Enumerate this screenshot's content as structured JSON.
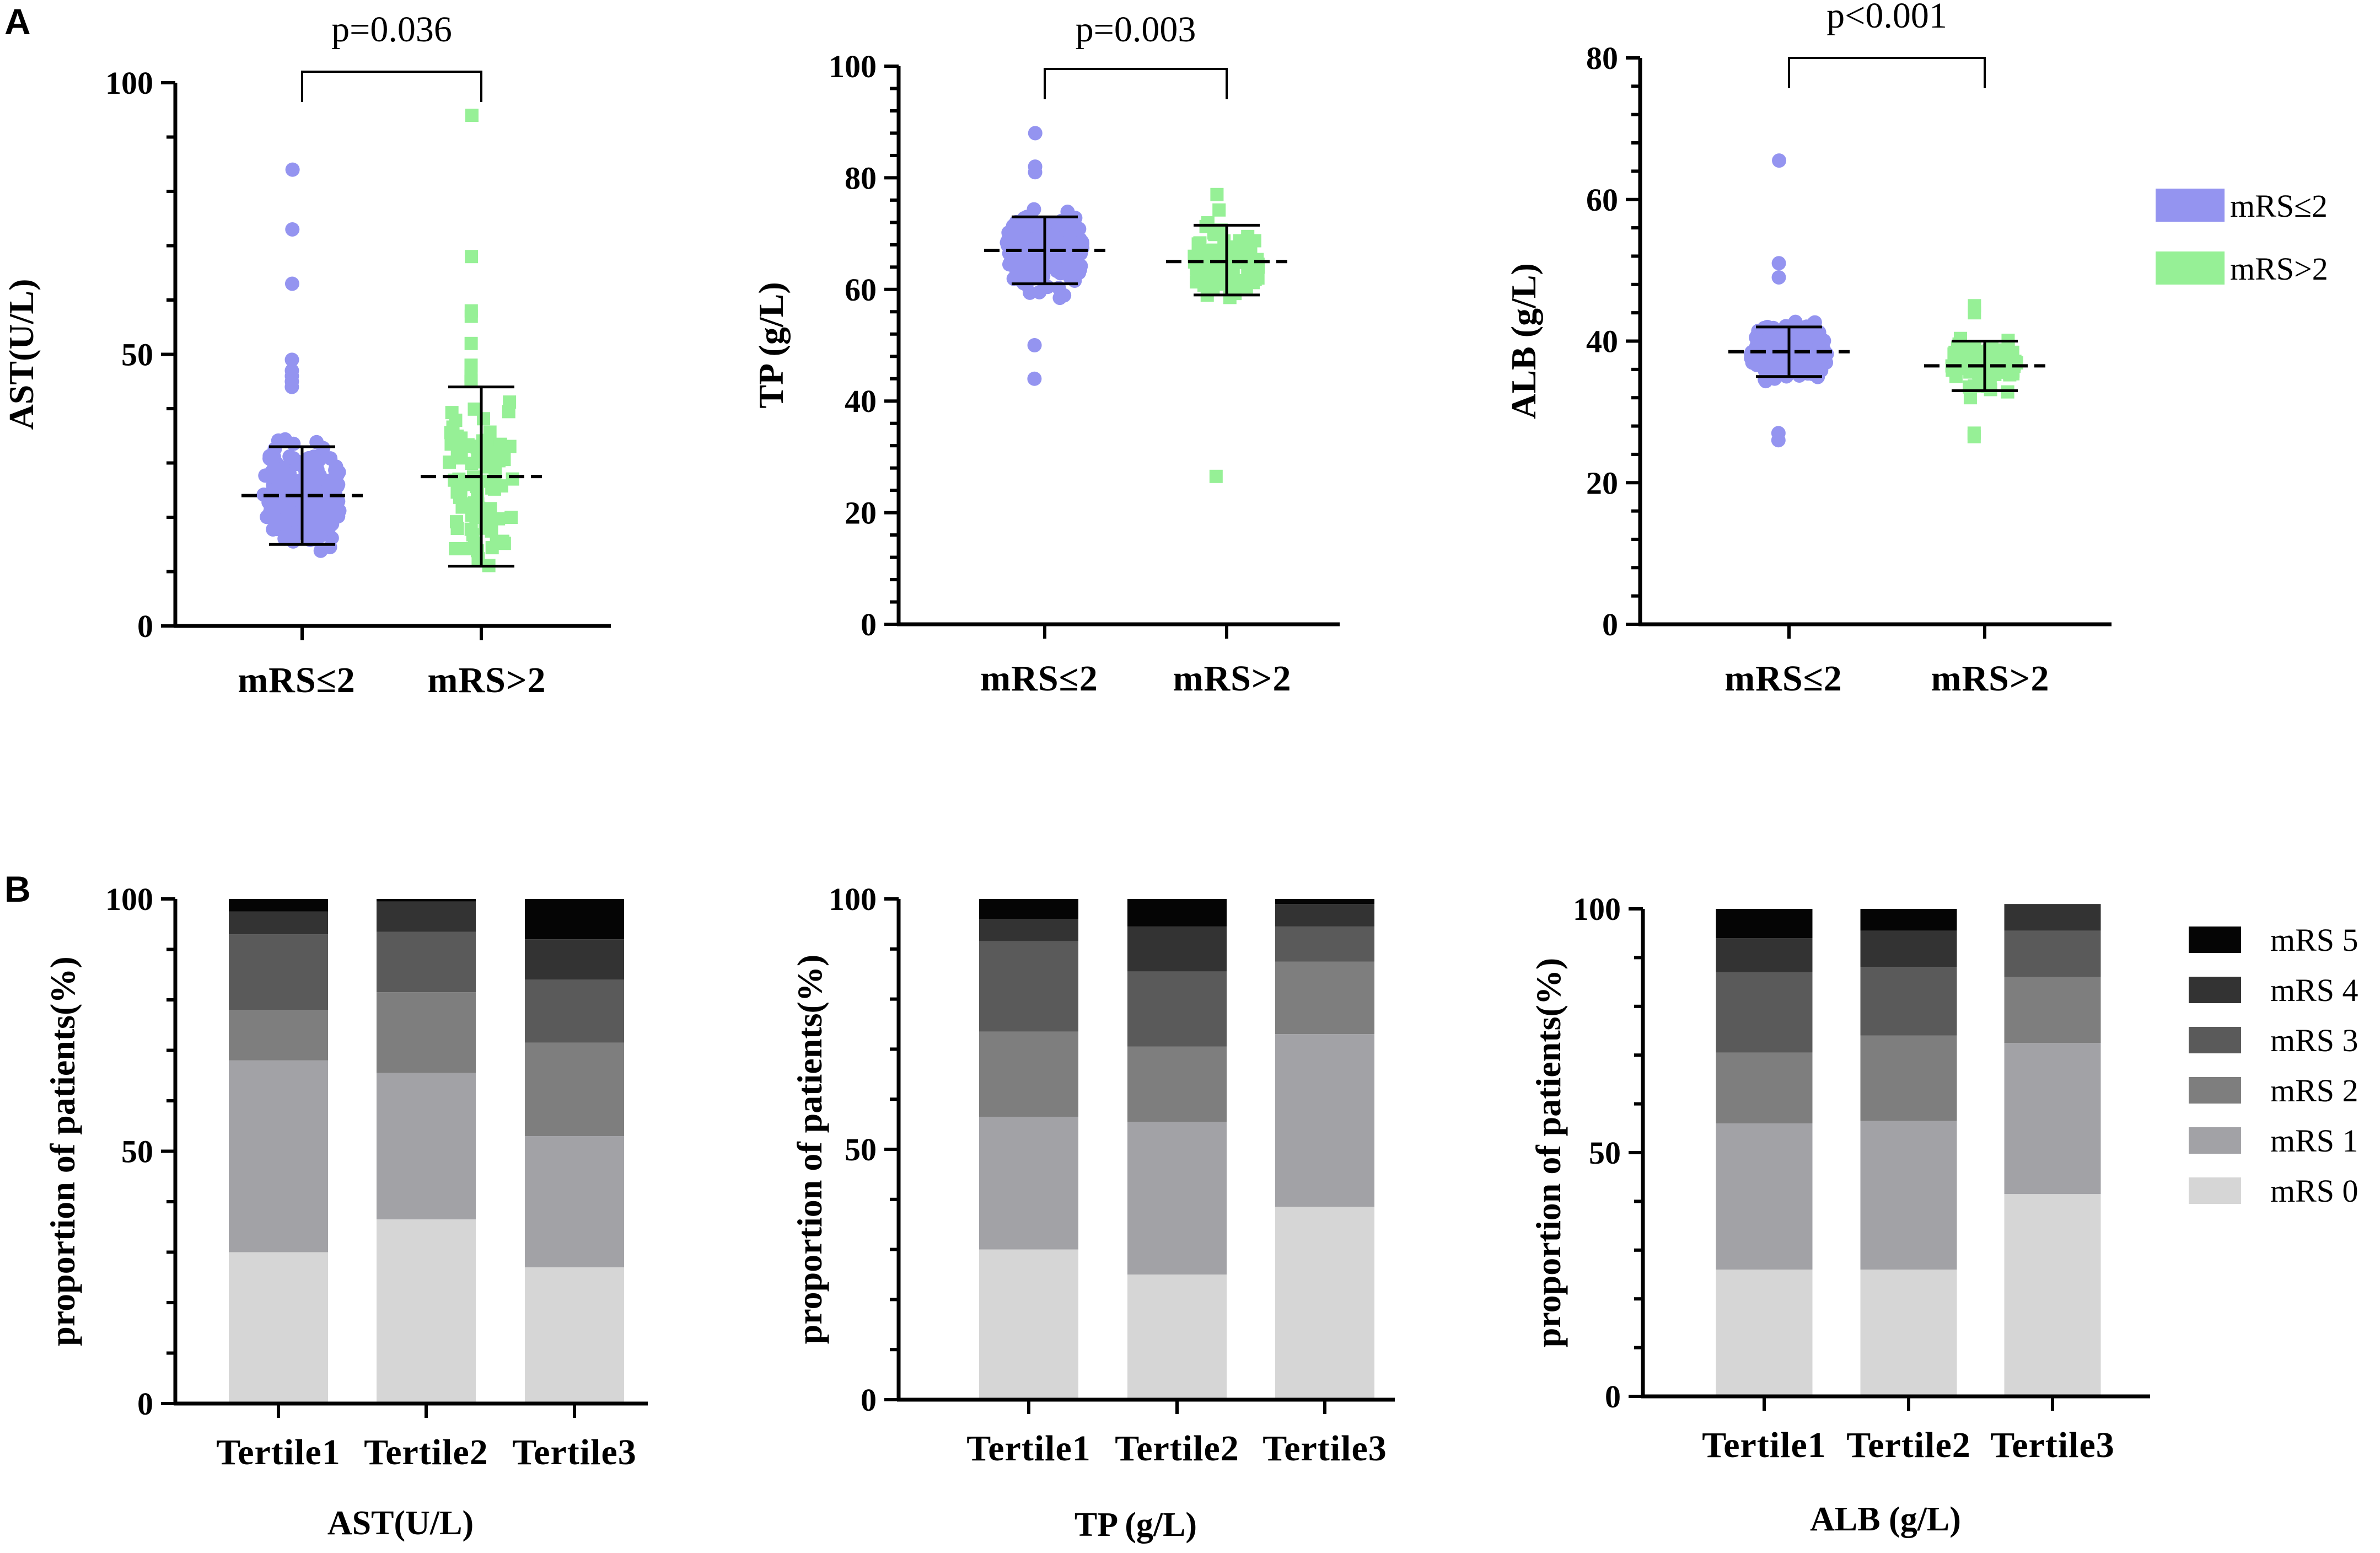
{
  "panel_labels": [
    "A",
    "B"
  ],
  "legend_top": {
    "items": [
      {
        "label": "mRS≤2",
        "color": "#9494f0"
      },
      {
        "label": "mRS>2",
        "color": "#96f096"
      }
    ]
  },
  "legend_bottom": {
    "items": [
      {
        "label": "mRS 5",
        "color": "#050505"
      },
      {
        "label": "mRS 4",
        "color": "#333333"
      },
      {
        "label": "mRS 3",
        "color": "#5a5a5a"
      },
      {
        "label": "mRS 2",
        "color": "#7e7e7e"
      },
      {
        "label": "mRS 1",
        "color": "#a2a2a6"
      },
      {
        "label": "mRS 0",
        "color": "#d6d6d6"
      }
    ]
  },
  "chart_data": [
    {
      "type": "scatter",
      "title": "",
      "ylabel": "AST(U/L)",
      "xlabel": "",
      "categories": [
        "mRS≤2",
        "mRS>2"
      ],
      "ylim": [
        0,
        100
      ],
      "yticks": [
        0,
        50,
        100
      ],
      "pvalue": "p=0.036",
      "series": [
        {
          "name": "mRS≤2",
          "mean": 24,
          "sd_upper": 33,
          "sd_lower": 15,
          "min": 11,
          "max": 84,
          "outliers": [
            84,
            73,
            63,
            49,
            47,
            46,
            45,
            44
          ]
        },
        {
          "name": "mRS>2",
          "mean": 27.5,
          "sd_upper": 44,
          "sd_lower": 11,
          "min": 10,
          "max": 94,
          "outliers": [
            94,
            68,
            58,
            57,
            52,
            48,
            46,
            45
          ]
        }
      ]
    },
    {
      "type": "scatter",
      "title": "",
      "ylabel": "TP (g/L)",
      "xlabel": "",
      "categories": [
        "mRS≤2",
        "mRS>2"
      ],
      "ylim": [
        0,
        100
      ],
      "yticks": [
        0,
        20,
        40,
        60,
        80,
        100
      ],
      "pvalue": "p=0.003",
      "series": [
        {
          "name": "mRS≤2",
          "mean": 67,
          "sd_upper": 73,
          "sd_lower": 61,
          "min": 44,
          "max": 88,
          "outliers": [
            88,
            82,
            81,
            44,
            50
          ]
        },
        {
          "name": "mRS>2",
          "mean": 65,
          "sd_upper": 71.5,
          "sd_lower": 59,
          "min": 26.5,
          "max": 77,
          "outliers": [
            77,
            26.5
          ]
        }
      ]
    },
    {
      "type": "scatter",
      "title": "",
      "ylabel": "ALB (g/L)",
      "xlabel": "",
      "categories": [
        "mRS≤2",
        "mRS>2"
      ],
      "ylim": [
        0,
        80
      ],
      "yticks": [
        0,
        20,
        40,
        60,
        80
      ],
      "pvalue": "p<0.001",
      "series": [
        {
          "name": "mRS≤2",
          "mean": 38.5,
          "sd_upper": 42,
          "sd_lower": 35,
          "min": 26,
          "max": 65.5,
          "outliers": [
            65.5,
            51,
            49,
            27,
            26
          ]
        },
        {
          "name": "mRS>2",
          "mean": 36.5,
          "sd_upper": 40,
          "sd_lower": 33,
          "min": 26.5,
          "max": 45,
          "outliers": [
            45,
            44,
            27,
            26.5
          ]
        }
      ]
    },
    {
      "type": "bar",
      "stacked": true,
      "title": "",
      "xlabel": "AST(U/L)",
      "ylabel": "proportion of patients(%)",
      "categories": [
        "Tertile1",
        "Tertile2",
        "Tertile3"
      ],
      "ylim": [
        0,
        100
      ],
      "yticks": [
        0,
        50,
        100
      ],
      "series": [
        {
          "name": "mRS 0",
          "values": [
            30,
            36.5,
            27
          ]
        },
        {
          "name": "mRS 1",
          "values": [
            38,
            29,
            26
          ]
        },
        {
          "name": "mRS 2",
          "values": [
            10,
            16,
            18.5
          ]
        },
        {
          "name": "mRS 3",
          "values": [
            15,
            12,
            12.5
          ]
        },
        {
          "name": "mRS 4",
          "values": [
            4.5,
            6,
            8
          ]
        },
        {
          "name": "mRS 5",
          "values": [
            2.5,
            0.5,
            8
          ]
        }
      ]
    },
    {
      "type": "bar",
      "stacked": true,
      "title": "",
      "xlabel": "TP (g/L)",
      "ylabel": "proportion of patients(%)",
      "categories": [
        "Tertile1",
        "Tertile2",
        "Tertile3"
      ],
      "ylim": [
        0,
        100
      ],
      "yticks": [
        0,
        50,
        100
      ],
      "series": [
        {
          "name": "mRS 0",
          "values": [
            30,
            25,
            38.5
          ]
        },
        {
          "name": "mRS 1",
          "values": [
            26.5,
            30.5,
            34.5
          ]
        },
        {
          "name": "mRS 2",
          "values": [
            17,
            15,
            14.5
          ]
        },
        {
          "name": "mRS 3",
          "values": [
            18,
            15,
            7
          ]
        },
        {
          "name": "mRS 4",
          "values": [
            4.5,
            9,
            4.5
          ]
        },
        {
          "name": "mRS 5",
          "values": [
            4,
            5.5,
            1
          ]
        }
      ]
    },
    {
      "type": "bar",
      "stacked": true,
      "title": "",
      "xlabel": "ALB (g/L)",
      "ylabel": "proportion of patients(%)",
      "categories": [
        "Tertile1",
        "Tertile2",
        "Tertile3"
      ],
      "ylim": [
        0,
        100
      ],
      "yticks": [
        0,
        50,
        100
      ],
      "series": [
        {
          "name": "mRS 0",
          "values": [
            26,
            26,
            41.5
          ]
        },
        {
          "name": "mRS 1",
          "values": [
            30,
            30.5,
            31
          ]
        },
        {
          "name": "mRS 2",
          "values": [
            14.5,
            17.5,
            13.5
          ]
        },
        {
          "name": "mRS 3",
          "values": [
            16.5,
            14,
            9.5
          ]
        },
        {
          "name": "mRS 4",
          "values": [
            7,
            7.5,
            5.5
          ]
        },
        {
          "name": "mRS 5",
          "values": [
            6,
            4.5,
            0
          ]
        }
      ]
    }
  ]
}
